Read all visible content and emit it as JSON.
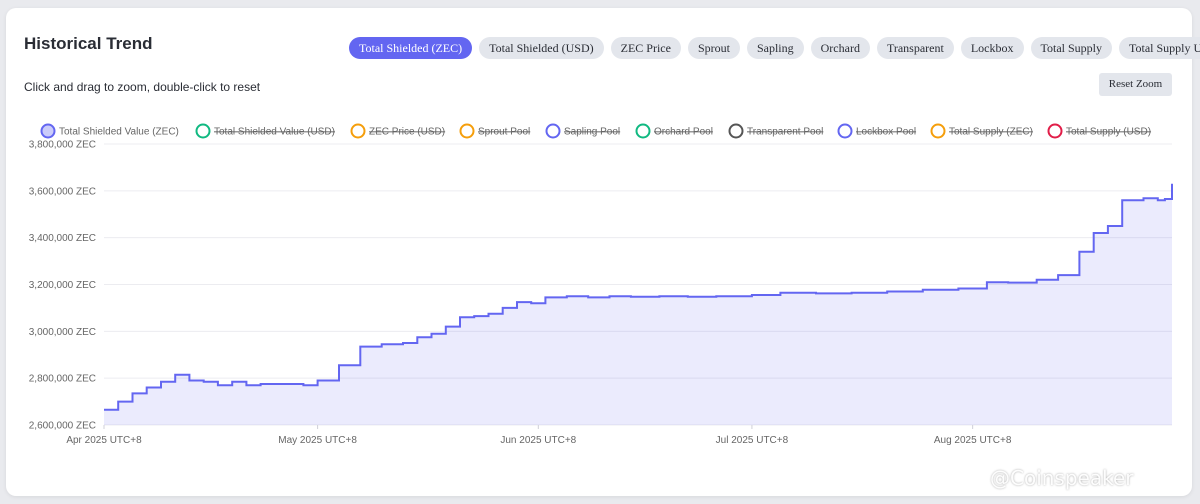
{
  "card": {
    "title": "Historical Trend",
    "hint": "Click and drag to zoom, double-click to reset",
    "reset_label": "Reset Zoom"
  },
  "tabs": [
    {
      "label": "Total Shielded (ZEC)",
      "active": true
    },
    {
      "label": "Total Shielded (USD)",
      "active": false
    },
    {
      "label": "ZEC Price",
      "active": false
    },
    {
      "label": "Sprout",
      "active": false
    },
    {
      "label": "Sapling",
      "active": false
    },
    {
      "label": "Orchard",
      "active": false
    },
    {
      "label": "Transparent",
      "active": false
    },
    {
      "label": "Lockbox",
      "active": false
    },
    {
      "label": "Total Supply",
      "active": false
    },
    {
      "label": "Total Supply USD",
      "active": false
    }
  ],
  "watermark": "@Coinspeaker",
  "chart_data": {
    "type": "area",
    "legend": [
      {
        "name": "Total Shielded Value (ZEC)",
        "color": "#6366f1",
        "visible": true
      },
      {
        "name": "Total Shielded Value (USD)",
        "color": "#10b981",
        "visible": false
      },
      {
        "name": "ZEC Price (USD)",
        "color": "#f59e0b",
        "visible": false
      },
      {
        "name": "Sprout Pool",
        "color": "#f59e0b",
        "visible": false
      },
      {
        "name": "Sapling Pool",
        "color": "#6366f1",
        "visible": false
      },
      {
        "name": "Orchard Pool",
        "color": "#10b981",
        "visible": false
      },
      {
        "name": "Transparent Pool",
        "color": "#555555",
        "visible": false
      },
      {
        "name": "Lockbox Pool",
        "color": "#6366f1",
        "visible": false
      },
      {
        "name": "Total Supply (ZEC)",
        "color": "#f59e0b",
        "visible": false
      },
      {
        "name": "Total Supply (USD)",
        "color": "#e11d48",
        "visible": false
      }
    ],
    "x_ticks": [
      "Apr 2025 UTC+8",
      "May 2025 UTC+8",
      "Jun 2025 UTC+8",
      "Jul 2025 UTC+8",
      "Aug 2025 UTC+8"
    ],
    "y_ticks": [
      "2,600,000 ZEC",
      "2,800,000 ZEC",
      "3,000,000 ZEC",
      "3,200,000 ZEC",
      "3,400,000 ZEC",
      "3,600,000 ZEC",
      "3,800,000 ZEC"
    ],
    "ylim": [
      2600000,
      3800000
    ],
    "xlim": [
      "2025-04-01",
      "2025-08-29"
    ],
    "grid": true,
    "series": [
      {
        "name": "Total Shielded Value (ZEC)",
        "color": "#6366f1",
        "x": [
          "2025-04-01",
          "2025-04-03",
          "2025-04-05",
          "2025-04-07",
          "2025-04-09",
          "2025-04-11",
          "2025-04-13",
          "2025-04-15",
          "2025-04-17",
          "2025-04-19",
          "2025-04-21",
          "2025-04-23",
          "2025-04-26",
          "2025-04-29",
          "2025-05-01",
          "2025-05-04",
          "2025-05-07",
          "2025-05-10",
          "2025-05-13",
          "2025-05-15",
          "2025-05-17",
          "2025-05-19",
          "2025-05-21",
          "2025-05-23",
          "2025-05-25",
          "2025-05-27",
          "2025-05-29",
          "2025-05-31",
          "2025-06-02",
          "2025-06-05",
          "2025-06-08",
          "2025-06-11",
          "2025-06-14",
          "2025-06-18",
          "2025-06-22",
          "2025-06-26",
          "2025-07-01",
          "2025-07-05",
          "2025-07-10",
          "2025-07-15",
          "2025-07-20",
          "2025-07-25",
          "2025-07-30",
          "2025-08-03",
          "2025-08-06",
          "2025-08-10",
          "2025-08-13",
          "2025-08-16",
          "2025-08-18",
          "2025-08-20",
          "2025-08-22",
          "2025-08-25",
          "2025-08-27",
          "2025-08-28",
          "2025-08-29"
        ],
        "values": [
          2665000,
          2700000,
          2735000,
          2760000,
          2785000,
          2815000,
          2790000,
          2785000,
          2770000,
          2785000,
          2770000,
          2775000,
          2775000,
          2770000,
          2790000,
          2855000,
          2935000,
          2945000,
          2950000,
          2975000,
          2990000,
          3020000,
          3060000,
          3065000,
          3075000,
          3100000,
          3125000,
          3120000,
          3145000,
          3150000,
          3145000,
          3150000,
          3148000,
          3150000,
          3148000,
          3150000,
          3155000,
          3165000,
          3162000,
          3165000,
          3170000,
          3178000,
          3183000,
          3210000,
          3208000,
          3220000,
          3240000,
          3340000,
          3420000,
          3450000,
          3560000,
          3568000,
          3560000,
          3565000,
          3630000
        ]
      }
    ]
  }
}
